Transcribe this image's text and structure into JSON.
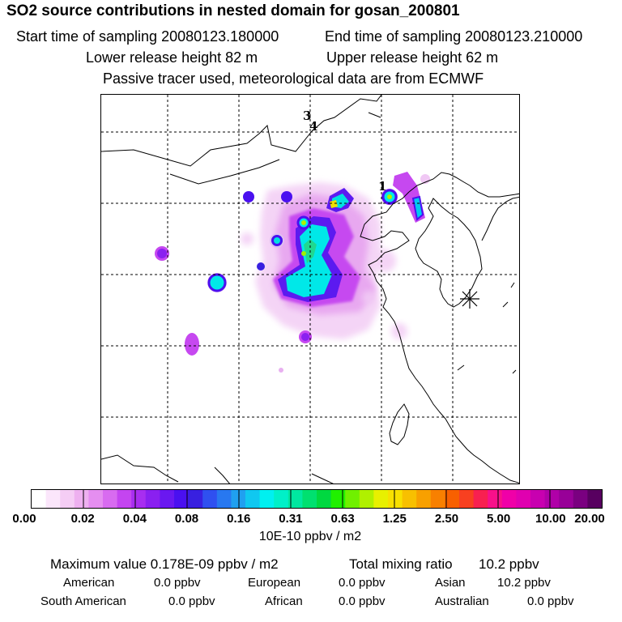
{
  "header": {
    "title": "SO2 source contributions in nested domain for gosan_200801",
    "start_label": "Start time of sampling 20080123.180000",
    "end_label": "End time of sampling 20080123.210000",
    "lower_label": "Lower release height   82 m",
    "upper_label": "Upper release height   62 m",
    "passive_label": "Passive tracer used, meteorological data are from ECMWF"
  },
  "map": {
    "station_labels": [
      "1",
      "3",
      "4"
    ],
    "receptor_marker": "receptor-star-icon"
  },
  "colorbar": {
    "ticks": [
      "0.00",
      "0.02",
      "0.04",
      "0.08",
      "0.16",
      "0.31",
      "0.63",
      "1.25",
      "2.50",
      "5.00",
      "10.00",
      "20.00"
    ],
    "units": "10E-10 ppbv / m2",
    "colors": [
      "#ffffff",
      "#fbe6fb",
      "#f5cdf5",
      "#eeb0f0",
      "#e58ef0",
      "#d86bf0",
      "#c445f0",
      "#a82ef0",
      "#8a20f0",
      "#6a18f0",
      "#4a10f0",
      "#3820e0",
      "#2f50f0",
      "#2878f0",
      "#20a0f0",
      "#10c8f0",
      "#00f0f0",
      "#00f0c8",
      "#00e8a0",
      "#00e070",
      "#00d840",
      "#20f000",
      "#70f000",
      "#b0f000",
      "#e8f000",
      "#f8e000",
      "#f8c000",
      "#f8a000",
      "#f88000",
      "#f86000",
      "#f84020",
      "#f82050",
      "#f8108a",
      "#f000a8",
      "#e000b0",
      "#c800b0",
      "#b000a8",
      "#980098",
      "#7a0080",
      "#580060"
    ]
  },
  "stats": {
    "max_label": "Maximum value  0.178E-09 ppbv / m2",
    "total_label": "Total mixing ratio",
    "total_value": "10.2 ppbv",
    "american_label": "American",
    "american_value": "0.0 ppbv",
    "european_label": "European",
    "european_value": "0.0 ppbv",
    "asian_label": "Asian",
    "asian_value": "10.2 ppbv",
    "south_american_label": "South American",
    "south_american_value": "0.0 ppbv",
    "african_label": "African",
    "african_value": "0.0 ppbv",
    "australian_label": "Australian",
    "australian_value": "0.0 ppbv"
  }
}
